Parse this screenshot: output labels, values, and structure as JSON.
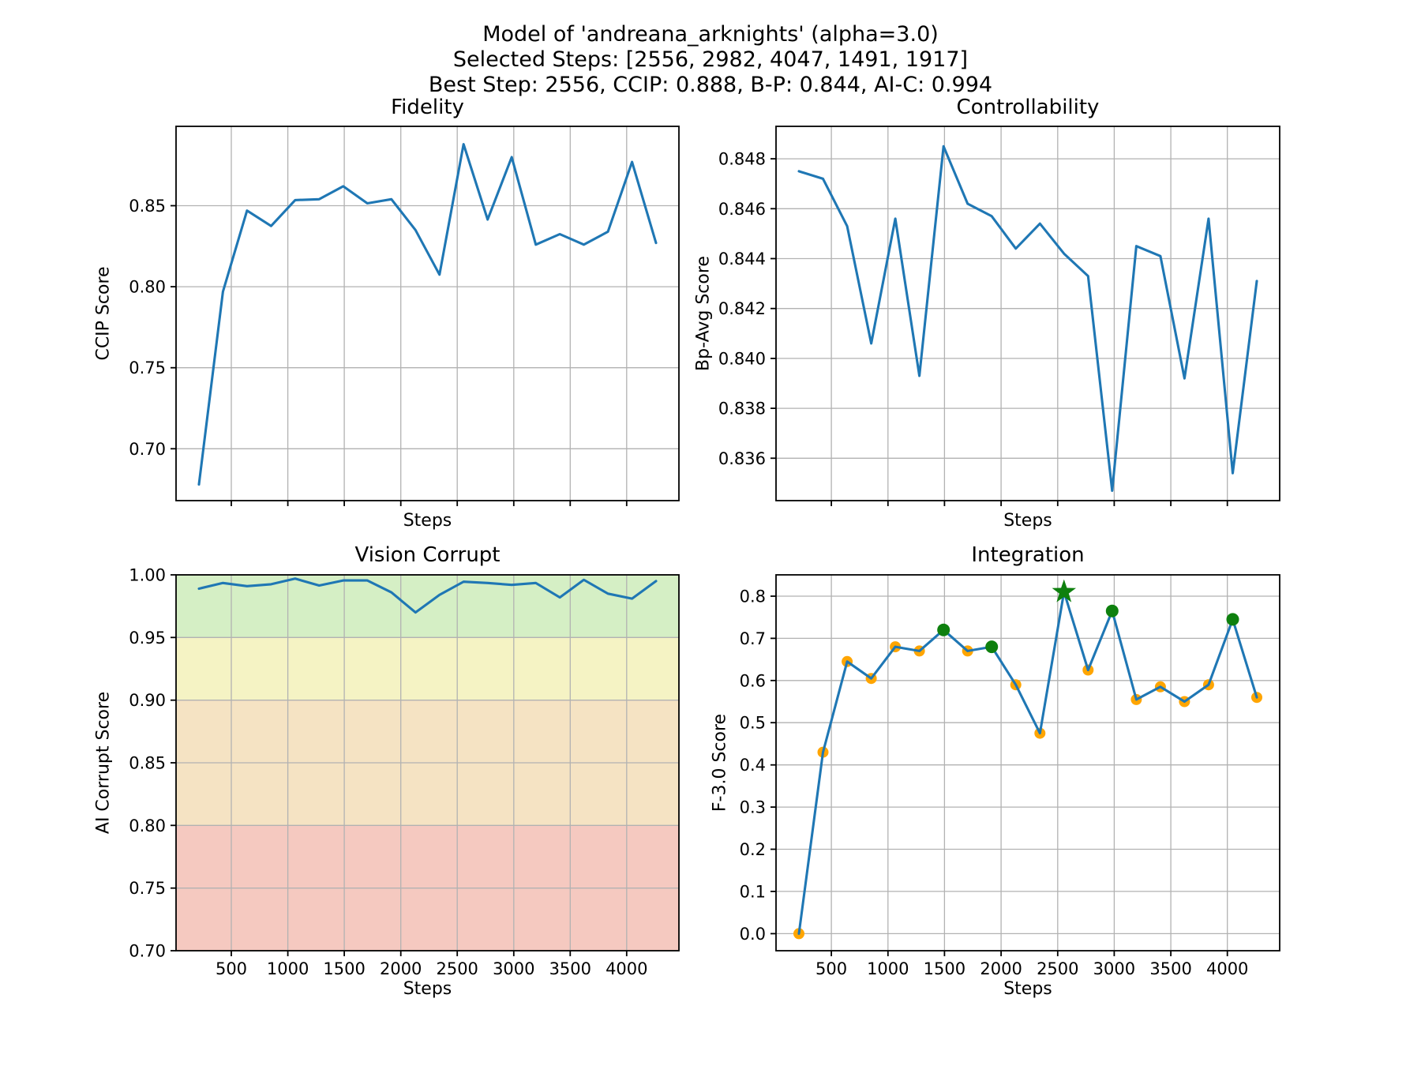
{
  "figure": {
    "title_lines": [
      "Model of 'andreana_arknights' (alpha=3.0)",
      "Selected Steps: [2556, 2982, 4047, 1491, 1917]",
      "Best Step: 2556, CCIP: 0.888, B-P: 0.844, AI-C: 0.994"
    ],
    "best_step": 2556,
    "best_ccip": 0.888,
    "best_bp": 0.844,
    "best_aic": 0.994,
    "selected_steps": [
      2556,
      2982,
      4047,
      1491,
      1917
    ]
  },
  "colors": {
    "line": "#1f77b4",
    "grid": "#b2b2b2",
    "spine": "#000000",
    "orange_marker": "#ffa500",
    "green_marker": "#0e800e",
    "star_marker": "#0e800e",
    "background": "#ffffff"
  },
  "chart_data": [
    {
      "id": "fidelity",
      "type": "line",
      "title": "Fidelity",
      "xlabel": "Steps",
      "ylabel": "CCIP Score",
      "grid": true,
      "x": [
        213,
        426,
        639,
        852,
        1065,
        1278,
        1491,
        1704,
        1917,
        2130,
        2343,
        2556,
        2769,
        2982,
        3195,
        3408,
        3621,
        3834,
        4047,
        4260
      ],
      "values": [
        0.678,
        0.797,
        0.847,
        0.8375,
        0.8535,
        0.854,
        0.862,
        0.8515,
        0.854,
        0.835,
        0.8075,
        0.888,
        0.8415,
        0.88,
        0.826,
        0.8325,
        0.826,
        0.834,
        0.877,
        0.827
      ],
      "xlim": [
        10.65,
        4462.35
      ],
      "ylim": [
        0.668,
        0.899
      ],
      "xticks": {
        "values": [
          500,
          1000,
          1500,
          2000,
          2500,
          3000,
          3500,
          4000
        ],
        "labels": [
          "500",
          "1000",
          "1500",
          "2000",
          "2500",
          "3000",
          "3500",
          "4000"
        ],
        "show_labels": false
      },
      "yticks": {
        "values": [
          0.7,
          0.75,
          0.8,
          0.85
        ],
        "labels": [
          "0.70",
          "0.75",
          "0.80",
          "0.85"
        ]
      }
    },
    {
      "id": "controllability",
      "type": "line",
      "title": "Controllability",
      "xlabel": "Steps",
      "ylabel": "Bp-Avg Score",
      "grid": true,
      "x": [
        213,
        426,
        639,
        852,
        1065,
        1278,
        1491,
        1704,
        1917,
        2130,
        2343,
        2556,
        2769,
        2982,
        3195,
        3408,
        3621,
        3834,
        4047,
        4260
      ],
      "values": [
        0.8475,
        0.8472,
        0.8453,
        0.8406,
        0.8456,
        0.8393,
        0.8485,
        0.8462,
        0.8457,
        0.8444,
        0.8454,
        0.8442,
        0.8433,
        0.8347,
        0.8445,
        0.8441,
        0.8392,
        0.8456,
        0.8354,
        0.8431
      ],
      "xlim": [
        10.65,
        4462.35
      ],
      "ylim": [
        0.8343,
        0.8493
      ],
      "xticks": {
        "values": [
          500,
          1000,
          1500,
          2000,
          2500,
          3000,
          3500,
          4000
        ],
        "labels": [
          "500",
          "1000",
          "1500",
          "2000",
          "2500",
          "3000",
          "3500",
          "4000"
        ],
        "show_labels": false
      },
      "yticks": {
        "values": [
          0.836,
          0.838,
          0.84,
          0.842,
          0.844,
          0.846,
          0.848
        ],
        "labels": [
          "0.836",
          "0.838",
          "0.840",
          "0.842",
          "0.844",
          "0.846",
          "0.848"
        ]
      }
    },
    {
      "id": "vision",
      "type": "line",
      "title": "Vision Corrupt",
      "xlabel": "Steps",
      "ylabel": "AI Corrupt Score",
      "grid": true,
      "x": [
        213,
        426,
        639,
        852,
        1065,
        1278,
        1491,
        1704,
        1917,
        2130,
        2343,
        2556,
        2769,
        2982,
        3195,
        3408,
        3621,
        3834,
        4047,
        4260
      ],
      "values": [
        0.989,
        0.9935,
        0.991,
        0.9925,
        0.997,
        0.9915,
        0.9955,
        0.9955,
        0.986,
        0.97,
        0.984,
        0.9945,
        0.9935,
        0.992,
        0.9935,
        0.982,
        0.996,
        0.985,
        0.981,
        0.995
      ],
      "xlim": [
        10.65,
        4462.35
      ],
      "ylim": [
        0.7,
        1.0
      ],
      "xticks": {
        "values": [
          500,
          1000,
          1500,
          2000,
          2500,
          3000,
          3500,
          4000
        ],
        "labels": [
          "500",
          "1000",
          "1500",
          "2000",
          "2500",
          "3000",
          "3500",
          "4000"
        ],
        "show_labels": true
      },
      "yticks": {
        "values": [
          0.7,
          0.75,
          0.8,
          0.85,
          0.9,
          0.95,
          1.0
        ],
        "labels": [
          "0.70",
          "0.75",
          "0.80",
          "0.85",
          "0.90",
          "0.95",
          "1.00"
        ]
      },
      "bands": [
        {
          "from": 0.95,
          "to": 1.0,
          "color": "#d5efc5"
        },
        {
          "from": 0.9,
          "to": 0.95,
          "color": "#f5f3c4"
        },
        {
          "from": 0.8,
          "to": 0.9,
          "color": "#f5e3c3"
        },
        {
          "from": 0.7,
          "to": 0.8,
          "color": "#f5c9c0"
        }
      ]
    },
    {
      "id": "integration",
      "type": "line",
      "title": "Integration",
      "xlabel": "Steps",
      "ylabel": "F-3.0 Score",
      "grid": true,
      "x": [
        213,
        426,
        639,
        852,
        1065,
        1278,
        1491,
        1704,
        1917,
        2130,
        2343,
        2556,
        2769,
        2982,
        3195,
        3408,
        3621,
        3834,
        4047,
        4260
      ],
      "values": [
        0.0,
        0.43,
        0.645,
        0.605,
        0.68,
        0.67,
        0.72,
        0.67,
        0.68,
        0.59,
        0.475,
        0.81,
        0.625,
        0.765,
        0.555,
        0.585,
        0.55,
        0.59,
        0.745,
        0.56
      ],
      "xlim": [
        10.65,
        4462.35
      ],
      "ylim": [
        -0.0405,
        0.8505
      ],
      "xticks": {
        "values": [
          500,
          1000,
          1500,
          2000,
          2500,
          3000,
          3500,
          4000
        ],
        "labels": [
          "500",
          "1000",
          "1500",
          "2000",
          "2500",
          "3000",
          "3500",
          "4000"
        ],
        "show_labels": true
      },
      "yticks": {
        "values": [
          0.0,
          0.1,
          0.2,
          0.3,
          0.4,
          0.5,
          0.6,
          0.7,
          0.8
        ],
        "labels": [
          "0.0",
          "0.1",
          "0.2",
          "0.3",
          "0.4",
          "0.5",
          "0.6",
          "0.7",
          "0.8"
        ]
      },
      "markers": {
        "default_color": "#ffa500",
        "default_radius": 7,
        "green_color": "#0e800e",
        "green_radius": 8,
        "green_indices": [
          6,
          8,
          13,
          18
        ],
        "star_index": 11,
        "star_color": "#0e800e",
        "star_outer_radius": 16,
        "star_inner_radius": 6.3
      }
    }
  ]
}
